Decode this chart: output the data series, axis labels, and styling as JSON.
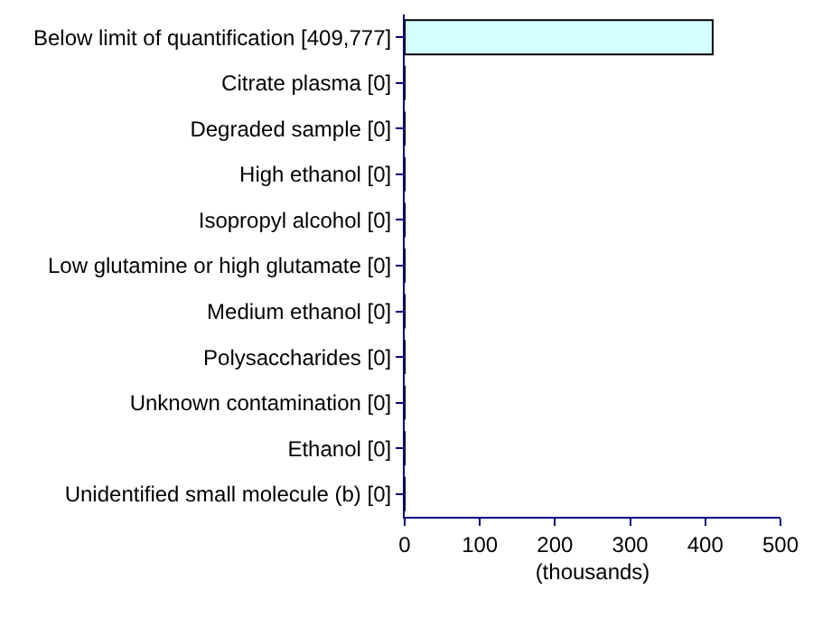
{
  "chart_data": {
    "type": "bar",
    "orientation": "horizontal",
    "xlabel": "(thousands)",
    "categories": [
      "Below limit of quantification [409,777]",
      "Citrate plasma [0]",
      "Degraded sample [0]",
      "High ethanol [0]",
      "Isopropyl alcohol [0]",
      "Low glutamine or high glutamate [0]",
      "Medium ethanol [0]",
      "Polysaccharides [0]",
      "Unknown contamination [0]",
      "Ethanol [0]",
      "Unidentified small molecule (b) [0]"
    ],
    "values": [
      409.777,
      0,
      0,
      0,
      0,
      0,
      0,
      0,
      0,
      0,
      0
    ],
    "color": "#d5ffff",
    "xlim": [
      0,
      500
    ],
    "xticks": [
      0,
      100,
      200,
      300,
      400,
      500
    ]
  }
}
